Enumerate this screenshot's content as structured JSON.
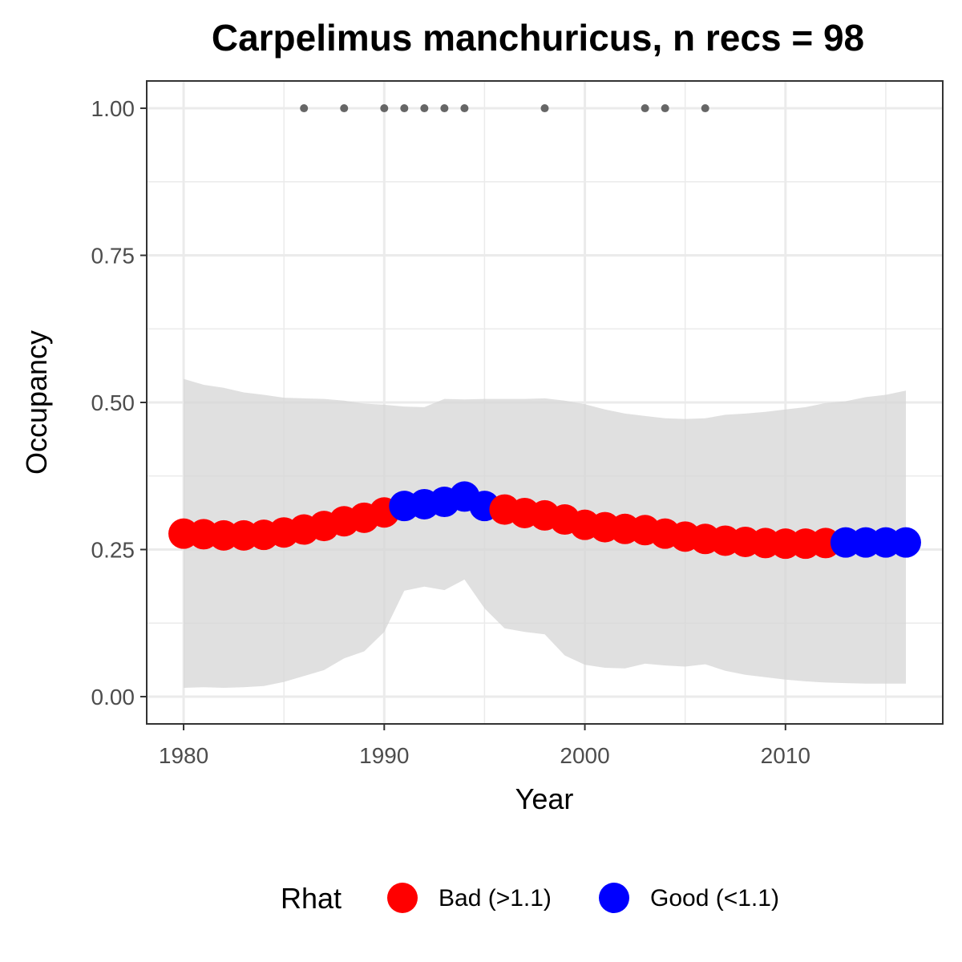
{
  "chart_data": {
    "type": "line",
    "title": "Carpelimus manchuricus, n recs = 98",
    "xlabel": "Year",
    "ylabel": "Occupancy",
    "xlim": [
      1978.2,
      2017.8
    ],
    "ylim": [
      -0.045,
      1.045
    ],
    "x_ticks": [
      1980,
      1990,
      2000,
      2010
    ],
    "x_tick_labels": [
      "1980",
      "1990",
      "2000",
      "2010"
    ],
    "y_ticks": [
      0,
      0.25,
      0.5,
      0.75,
      1
    ],
    "y_tick_labels": [
      "0.00",
      "0.25",
      "0.50",
      "0.75",
      "1.00"
    ],
    "x_minor_ticks": [
      1985,
      1995,
      2005,
      2015
    ],
    "y_minor_ticks": [
      0.125,
      0.375,
      0.625,
      0.875
    ],
    "grid": true,
    "legend": {
      "title": "Rhat",
      "placement": "bottom",
      "entries": [
        {
          "label": "Bad (>1.1)",
          "color": "#ff0000"
        },
        {
          "label": "Good (<1.1)",
          "color": "#0000ff"
        }
      ]
    },
    "colors": {
      "bad": "#ff0000",
      "good": "#0000ff",
      "ribbon": "#d6d6d6",
      "records": "#666666",
      "grid": "#ebebeb",
      "panel_border": "#333333"
    },
    "series": [
      {
        "kind": "mean",
        "x": [
          1980,
          1981,
          1982,
          1983,
          1984,
          1985,
          1986,
          1987,
          1988,
          1989,
          1990,
          1991,
          1992,
          1993,
          1994,
          1995,
          1996,
          1997,
          1998,
          1999,
          2000,
          2001,
          2002,
          2003,
          2004,
          2005,
          2006,
          2007,
          2008,
          2009,
          2010,
          2011,
          2012,
          2013,
          2014,
          2015,
          2016
        ],
        "values": [
          0.277,
          0.276,
          0.274,
          0.274,
          0.275,
          0.279,
          0.284,
          0.29,
          0.298,
          0.304,
          0.313,
          0.324,
          0.327,
          0.331,
          0.34,
          0.324,
          0.318,
          0.312,
          0.308,
          0.301,
          0.292,
          0.288,
          0.285,
          0.283,
          0.277,
          0.272,
          0.268,
          0.265,
          0.263,
          0.261,
          0.26,
          0.26,
          0.261,
          0.262,
          0.262,
          0.262,
          0.262
        ],
        "rhat": [
          "bad",
          "bad",
          "bad",
          "bad",
          "bad",
          "bad",
          "bad",
          "bad",
          "bad",
          "bad",
          "bad",
          "good",
          "good",
          "good",
          "good",
          "good",
          "bad",
          "bad",
          "bad",
          "bad",
          "bad",
          "bad",
          "bad",
          "bad",
          "bad",
          "bad",
          "bad",
          "bad",
          "bad",
          "bad",
          "bad",
          "bad",
          "bad",
          "good",
          "good",
          "good",
          "good"
        ]
      },
      {
        "kind": "ribbon",
        "x": [
          1980,
          1981,
          1982,
          1983,
          1984,
          1985,
          1986,
          1987,
          1988,
          1989,
          1990,
          1991,
          1992,
          1993,
          1994,
          1995,
          1996,
          1997,
          1998,
          1999,
          2000,
          2001,
          2002,
          2003,
          2004,
          2005,
          2006,
          2007,
          2008,
          2009,
          2010,
          2011,
          2012,
          2013,
          2014,
          2015,
          2016
        ],
        "upper": [
          0.54,
          0.53,
          0.525,
          0.517,
          0.513,
          0.508,
          0.507,
          0.506,
          0.503,
          0.498,
          0.496,
          0.493,
          0.492,
          0.506,
          0.505,
          0.506,
          0.506,
          0.506,
          0.507,
          0.503,
          0.497,
          0.488,
          0.481,
          0.477,
          0.473,
          0.472,
          0.473,
          0.479,
          0.481,
          0.484,
          0.488,
          0.492,
          0.499,
          0.502,
          0.509,
          0.513,
          0.52
        ],
        "lower": [
          0.015,
          0.016,
          0.015,
          0.016,
          0.018,
          0.025,
          0.035,
          0.045,
          0.065,
          0.077,
          0.11,
          0.18,
          0.187,
          0.181,
          0.199,
          0.15,
          0.116,
          0.11,
          0.106,
          0.07,
          0.054,
          0.049,
          0.048,
          0.056,
          0.053,
          0.051,
          0.055,
          0.044,
          0.037,
          0.033,
          0.029,
          0.026,
          0.024,
          0.023,
          0.022,
          0.022,
          0.022
        ]
      },
      {
        "kind": "records",
        "x": [
          1986,
          1988,
          1990,
          1991,
          1992,
          1993,
          1994,
          1998,
          2003,
          2004,
          2006
        ],
        "values": [
          1,
          1,
          1,
          1,
          1,
          1,
          1,
          1,
          1,
          1,
          1
        ]
      }
    ]
  }
}
